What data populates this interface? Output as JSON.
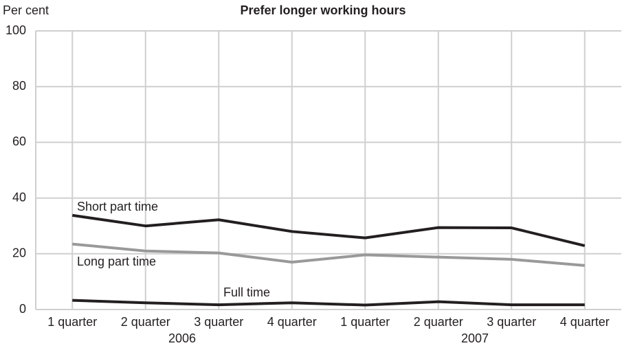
{
  "chart_data": {
    "type": "line",
    "title": "Prefer longer working hours",
    "y_axis_label": "Per cent",
    "categories": [
      "1 quarter",
      "2 quarter",
      "3 quarter",
      "4 quarter",
      "1 quarter",
      "2 quarter",
      "3 quarter",
      "4 quarter"
    ],
    "year_labels": [
      "2006",
      "2007"
    ],
    "series": [
      {
        "name": "Short part time",
        "color": "#231f20",
        "values": [
          33.8,
          30.0,
          32.2,
          28.0,
          25.7,
          29.4,
          29.3,
          22.9
        ]
      },
      {
        "name": "Long part time",
        "color": "#999999",
        "values": [
          23.5,
          21.0,
          20.3,
          17.0,
          19.6,
          18.8,
          18.0,
          15.8
        ]
      },
      {
        "name": "Full time",
        "color": "#231f20",
        "values": [
          3.3,
          2.4,
          1.7,
          2.4,
          1.6,
          2.8,
          1.7,
          1.7
        ]
      }
    ],
    "ylim": [
      0,
      100
    ],
    "yticks": [
      0,
      20,
      40,
      60,
      80,
      100
    ],
    "grid": true
  }
}
